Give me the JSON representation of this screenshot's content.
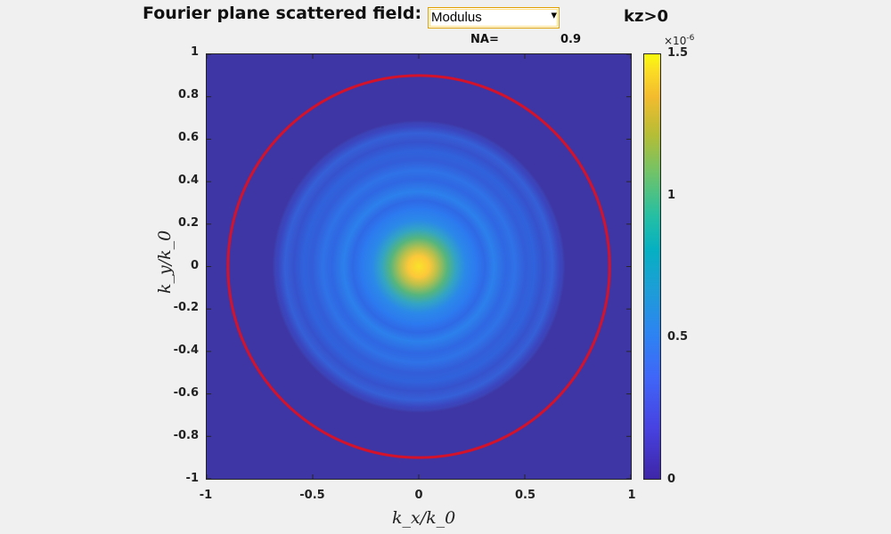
{
  "header": {
    "title": "Fourier plane scattered field:",
    "mode_select": {
      "value": "Modulus"
    },
    "kz_label": "kz>0",
    "na_label": "NA=",
    "na_value": "0.9"
  },
  "chart_data": {
    "type": "heatmap",
    "xlabel": "k_x/k_0",
    "ylabel": "k_y/k_0",
    "xlim": [
      -1,
      1
    ],
    "ylim": [
      -1,
      1
    ],
    "x_ticks": [
      "-1",
      "-0.5",
      "0",
      "0.5",
      "1"
    ],
    "y_ticks": [
      "1",
      "0.8",
      "0.6",
      "0.4",
      "0.2",
      "0",
      "-0.2",
      "-0.4",
      "-0.6",
      "-0.8",
      "-1"
    ],
    "na_circle_radius": 0.9,
    "na_circle_color": "#d4122a",
    "colormap": "parula",
    "colorbar": {
      "range": [
        0,
        1.5
      ],
      "ticks": [
        "0",
        "0.5",
        "1",
        "1.5"
      ],
      "exponent_base": "×10",
      "exponent_power": "-6"
    }
  }
}
